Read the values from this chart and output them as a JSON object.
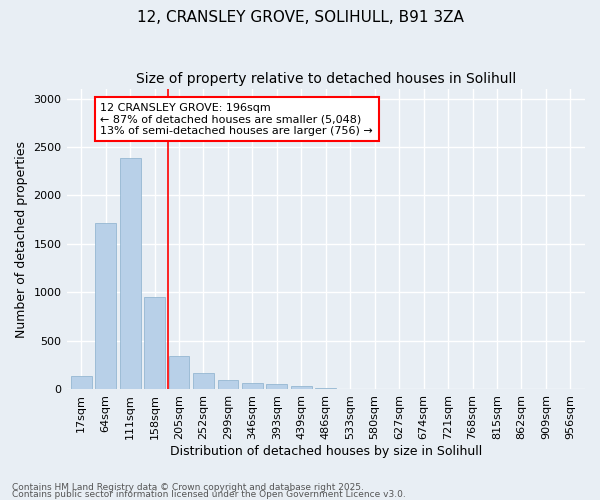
{
  "title_line1": "12, CRANSLEY GROVE, SOLIHULL, B91 3ZA",
  "title_line2": "Size of property relative to detached houses in Solihull",
  "xlabel": "Distribution of detached houses by size in Solihull",
  "ylabel": "Number of detached properties",
  "categories": [
    "17sqm",
    "64sqm",
    "111sqm",
    "158sqm",
    "205sqm",
    "252sqm",
    "299sqm",
    "346sqm",
    "393sqm",
    "439sqm",
    "486sqm",
    "533sqm",
    "580sqm",
    "627sqm",
    "674sqm",
    "721sqm",
    "768sqm",
    "815sqm",
    "862sqm",
    "909sqm",
    "956sqm"
  ],
  "values": [
    130,
    1720,
    2390,
    950,
    340,
    160,
    90,
    65,
    50,
    30,
    5,
    0,
    0,
    0,
    0,
    0,
    0,
    0,
    0,
    0,
    0
  ],
  "bar_color": "#b8d0e8",
  "bar_edge_color": "#8ab0cc",
  "background_color": "#e8eef4",
  "grid_color": "#ffffff",
  "ylim": [
    0,
    3100
  ],
  "yticks": [
    0,
    500,
    1000,
    1500,
    2000,
    2500,
    3000
  ],
  "property_line_x": 3.55,
  "annotation_title": "12 CRANSLEY GROVE: 196sqm",
  "annotation_line1": "← 87% of detached houses are smaller (5,048)",
  "annotation_line2": "13% of semi-detached houses are larger (756) →",
  "footnote_line1": "Contains HM Land Registry data © Crown copyright and database right 2025.",
  "footnote_line2": "Contains public sector information licensed under the Open Government Licence v3.0.",
  "title_fontsize": 11,
  "subtitle_fontsize": 10,
  "axis_label_fontsize": 9,
  "tick_fontsize": 8,
  "annotation_fontsize": 8,
  "footnote_fontsize": 6.5
}
